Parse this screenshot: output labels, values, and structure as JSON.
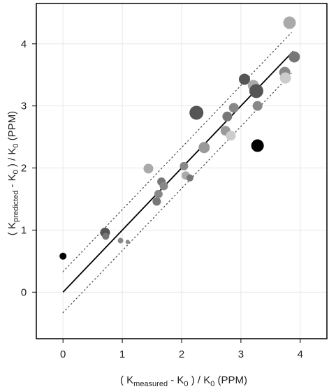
{
  "chart_data": {
    "type": "scatter",
    "xlabel": {
      "open": "( K",
      "sub": "measured",
      "mid": " - K",
      "sub0": "0",
      "close": " ) / K",
      "sub1": "0",
      "unit": " (PPM)"
    },
    "ylabel": {
      "open": "( K",
      "sub": "predicted",
      "mid": " - K",
      "sub0": "0",
      "close": " ) / K",
      "sub1": "0",
      "unit": " (PPM)"
    },
    "xlim": [
      -0.45,
      4.45
    ],
    "ylim": [
      -0.75,
      4.65
    ],
    "xticks": [
      0,
      1,
      2,
      3,
      4
    ],
    "yticks": [
      0,
      1,
      2,
      3,
      4
    ],
    "grid": true,
    "fit_line": {
      "x": [
        0,
        3.88
      ],
      "y": [
        0,
        3.88
      ],
      "color": "#000000"
    },
    "band_lines": [
      {
        "x": [
          0,
          3.85
        ],
        "y": [
          0.33,
          4.18
        ],
        "color": "#444444",
        "style": "dotted"
      },
      {
        "x": [
          0,
          3.85
        ],
        "y": [
          -0.33,
          3.52
        ],
        "color": "#444444",
        "style": "dotted"
      }
    ],
    "points": [
      {
        "x": 0.0,
        "y": 0.58,
        "size": 5,
        "color": "#000000"
      },
      {
        "x": 0.71,
        "y": 0.96,
        "size": 7,
        "color": "#555555"
      },
      {
        "x": 0.72,
        "y": 0.9,
        "size": 5,
        "color": "#777777"
      },
      {
        "x": 0.97,
        "y": 0.83,
        "size": 4,
        "color": "#888888"
      },
      {
        "x": 1.09,
        "y": 0.81,
        "size": 3,
        "color": "#888888"
      },
      {
        "x": 1.44,
        "y": 1.99,
        "size": 7,
        "color": "#aaaaaa"
      },
      {
        "x": 1.58,
        "y": 1.46,
        "size": 6,
        "color": "#777777"
      },
      {
        "x": 1.61,
        "y": 1.58,
        "size": 6,
        "color": "#888888"
      },
      {
        "x": 1.66,
        "y": 1.78,
        "size": 6,
        "color": "#777777"
      },
      {
        "x": 1.7,
        "y": 1.71,
        "size": 6,
        "color": "#888888"
      },
      {
        "x": 2.04,
        "y": 2.03,
        "size": 6,
        "color": "#888888"
      },
      {
        "x": 2.07,
        "y": 1.88,
        "size": 6,
        "color": "#aaaaaa"
      },
      {
        "x": 2.14,
        "y": 1.84,
        "size": 5,
        "color": "#777777"
      },
      {
        "x": 2.25,
        "y": 2.89,
        "size": 10,
        "color": "#555555"
      },
      {
        "x": 2.38,
        "y": 2.33,
        "size": 8,
        "color": "#999999"
      },
      {
        "x": 2.74,
        "y": 2.6,
        "size": 7,
        "color": "#999999"
      },
      {
        "x": 2.77,
        "y": 2.83,
        "size": 7,
        "color": "#777777"
      },
      {
        "x": 2.83,
        "y": 2.52,
        "size": 7,
        "color": "#cccccc"
      },
      {
        "x": 2.88,
        "y": 2.97,
        "size": 7,
        "color": "#888888"
      },
      {
        "x": 3.06,
        "y": 3.43,
        "size": 8,
        "color": "#555555"
      },
      {
        "x": 3.21,
        "y": 3.33,
        "size": 8,
        "color": "#aaaaaa"
      },
      {
        "x": 3.26,
        "y": 3.24,
        "size": 10,
        "color": "#555555"
      },
      {
        "x": 3.28,
        "y": 3.0,
        "size": 7,
        "color": "#888888"
      },
      {
        "x": 3.28,
        "y": 2.36,
        "size": 9,
        "color": "#000000"
      },
      {
        "x": 3.74,
        "y": 3.54,
        "size": 8,
        "color": "#888888"
      },
      {
        "x": 3.75,
        "y": 3.45,
        "size": 8,
        "color": "#cccccc"
      },
      {
        "x": 3.82,
        "y": 4.34,
        "size": 9,
        "color": "#aaaaaa"
      },
      {
        "x": 3.9,
        "y": 3.79,
        "size": 8,
        "color": "#777777"
      }
    ]
  }
}
